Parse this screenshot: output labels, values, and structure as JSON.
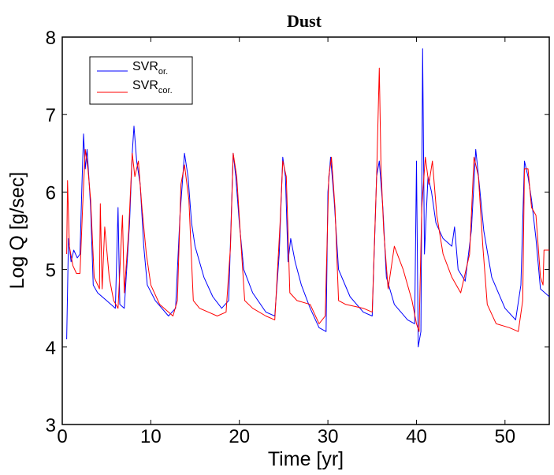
{
  "chart_data": {
    "type": "line",
    "title": "Dust",
    "xlabel": "Time [yr]",
    "ylabel": "Log Q [g/sec]",
    "xlim": [
      0,
      55
    ],
    "ylim": [
      3,
      8
    ],
    "xticks": [
      0,
      10,
      20,
      30,
      40,
      50
    ],
    "yticks": [
      3,
      4,
      5,
      6,
      7,
      8
    ],
    "grid": false,
    "legend_position": "top-left",
    "series": [
      {
        "name": "SVR",
        "name_subscript": "or.",
        "color": "#0000ff",
        "points": [
          [
            0.5,
            4.1
          ],
          [
            0.7,
            5.4
          ],
          [
            1.0,
            5.1
          ],
          [
            1.3,
            5.25
          ],
          [
            1.7,
            5.15
          ],
          [
            2.0,
            5.2
          ],
          [
            2.2,
            6.0
          ],
          [
            2.4,
            6.75
          ],
          [
            2.6,
            6.3
          ],
          [
            2.8,
            6.55
          ],
          [
            3.0,
            6.2
          ],
          [
            3.2,
            5.8
          ],
          [
            3.5,
            4.8
          ],
          [
            4.0,
            4.7
          ],
          [
            5.0,
            4.6
          ],
          [
            6.0,
            4.5
          ],
          [
            6.3,
            5.8
          ],
          [
            6.5,
            4.55
          ],
          [
            7.0,
            4.5
          ],
          [
            7.6,
            5.6
          ],
          [
            7.9,
            6.5
          ],
          [
            8.1,
            6.85
          ],
          [
            8.4,
            6.4
          ],
          [
            8.8,
            6.1
          ],
          [
            9.2,
            5.3
          ],
          [
            9.6,
            4.8
          ],
          [
            10.5,
            4.6
          ],
          [
            12.0,
            4.4
          ],
          [
            12.8,
            4.5
          ],
          [
            13.3,
            5.7
          ],
          [
            13.8,
            6.5
          ],
          [
            14.2,
            6.2
          ],
          [
            14.6,
            5.6
          ],
          [
            15.0,
            5.3
          ],
          [
            16.0,
            4.9
          ],
          [
            17.0,
            4.65
          ],
          [
            18.0,
            4.5
          ],
          [
            18.8,
            4.6
          ],
          [
            19.3,
            6.5
          ],
          [
            19.6,
            6.2
          ],
          [
            20.0,
            5.6
          ],
          [
            20.5,
            5.0
          ],
          [
            21.5,
            4.7
          ],
          [
            23.0,
            4.45
          ],
          [
            24.0,
            4.4
          ],
          [
            24.5,
            5.2
          ],
          [
            24.9,
            6.45
          ],
          [
            25.2,
            6.2
          ],
          [
            25.5,
            5.1
          ],
          [
            25.8,
            5.4
          ],
          [
            26.3,
            5.1
          ],
          [
            27.0,
            4.8
          ],
          [
            28.0,
            4.5
          ],
          [
            29.0,
            4.25
          ],
          [
            29.8,
            4.2
          ],
          [
            30.0,
            6.0
          ],
          [
            30.3,
            6.45
          ],
          [
            30.7,
            5.9
          ],
          [
            31.2,
            5.0
          ],
          [
            32.5,
            4.65
          ],
          [
            34.0,
            4.45
          ],
          [
            35.0,
            4.4
          ],
          [
            35.5,
            6.2
          ],
          [
            35.8,
            6.4
          ],
          [
            36.2,
            5.8
          ],
          [
            36.6,
            4.9
          ],
          [
            37.5,
            4.55
          ],
          [
            39.0,
            4.35
          ],
          [
            39.8,
            4.3
          ],
          [
            40.0,
            6.4
          ],
          [
            40.2,
            4.0
          ],
          [
            40.5,
            4.2
          ],
          [
            40.7,
            7.85
          ],
          [
            40.9,
            5.2
          ],
          [
            41.3,
            6.2
          ],
          [
            41.7,
            6.0
          ],
          [
            42.2,
            5.6
          ],
          [
            43.0,
            5.4
          ],
          [
            44.0,
            5.3
          ],
          [
            44.3,
            5.55
          ],
          [
            44.7,
            5.0
          ],
          [
            45.5,
            4.85
          ],
          [
            46.2,
            5.5
          ],
          [
            46.7,
            6.55
          ],
          [
            47.1,
            6.1
          ],
          [
            47.6,
            5.5
          ],
          [
            48.5,
            4.9
          ],
          [
            50.0,
            4.5
          ],
          [
            51.2,
            4.35
          ],
          [
            51.8,
            4.8
          ],
          [
            52.2,
            6.4
          ],
          [
            52.6,
            6.2
          ],
          [
            53.0,
            5.9
          ],
          [
            53.5,
            5.4
          ],
          [
            54.0,
            4.75
          ],
          [
            55.0,
            4.65
          ]
        ]
      },
      {
        "name": "SVR",
        "name_subscript": "cor.",
        "color": "#ff0000",
        "points": [
          [
            0.5,
            5.2
          ],
          [
            0.6,
            6.15
          ],
          [
            0.8,
            5.3
          ],
          [
            1.2,
            5.05
          ],
          [
            1.6,
            4.95
          ],
          [
            2.0,
            4.95
          ],
          [
            2.3,
            5.8
          ],
          [
            2.6,
            6.55
          ],
          [
            2.9,
            6.3
          ],
          [
            3.2,
            5.9
          ],
          [
            3.6,
            4.9
          ],
          [
            4.2,
            4.75
          ],
          [
            4.3,
            5.85
          ],
          [
            4.5,
            4.75
          ],
          [
            4.8,
            5.55
          ],
          [
            5.3,
            4.9
          ],
          [
            5.8,
            4.6
          ],
          [
            6.3,
            4.5
          ],
          [
            6.8,
            5.7
          ],
          [
            7.0,
            4.7
          ],
          [
            7.5,
            5.5
          ],
          [
            7.9,
            6.5
          ],
          [
            8.2,
            6.2
          ],
          [
            8.6,
            6.4
          ],
          [
            9.0,
            5.8
          ],
          [
            9.5,
            5.2
          ],
          [
            10.0,
            4.8
          ],
          [
            11.0,
            4.55
          ],
          [
            12.5,
            4.4
          ],
          [
            13.0,
            4.6
          ],
          [
            13.4,
            6.1
          ],
          [
            13.8,
            6.35
          ],
          [
            14.3,
            5.9
          ],
          [
            14.8,
            4.6
          ],
          [
            15.5,
            4.5
          ],
          [
            16.5,
            4.45
          ],
          [
            17.5,
            4.4
          ],
          [
            18.5,
            4.45
          ],
          [
            19.0,
            5.3
          ],
          [
            19.3,
            6.5
          ],
          [
            19.7,
            6.2
          ],
          [
            20.2,
            5.3
          ],
          [
            20.6,
            4.6
          ],
          [
            21.5,
            4.5
          ],
          [
            23.0,
            4.4
          ],
          [
            24.0,
            4.35
          ],
          [
            24.6,
            5.6
          ],
          [
            24.9,
            6.4
          ],
          [
            25.3,
            6.2
          ],
          [
            25.7,
            4.7
          ],
          [
            26.5,
            4.6
          ],
          [
            28.0,
            4.55
          ],
          [
            29.0,
            4.3
          ],
          [
            29.7,
            4.4
          ],
          [
            30.1,
            6.2
          ],
          [
            30.4,
            6.45
          ],
          [
            30.8,
            5.8
          ],
          [
            31.2,
            4.6
          ],
          [
            32.0,
            4.55
          ],
          [
            34.0,
            4.5
          ],
          [
            35.0,
            4.45
          ],
          [
            35.5,
            6.2
          ],
          [
            35.8,
            7.6
          ],
          [
            36.0,
            6.3
          ],
          [
            36.3,
            5.5
          ],
          [
            36.8,
            4.75
          ],
          [
            37.5,
            5.3
          ],
          [
            38.5,
            5.0
          ],
          [
            39.5,
            4.6
          ],
          [
            40.0,
            4.3
          ],
          [
            40.3,
            4.2
          ],
          [
            40.6,
            5.8
          ],
          [
            41.0,
            6.45
          ],
          [
            41.4,
            6.1
          ],
          [
            41.8,
            6.4
          ],
          [
            42.3,
            5.7
          ],
          [
            43.0,
            5.2
          ],
          [
            44.0,
            4.9
          ],
          [
            45.0,
            4.7
          ],
          [
            46.0,
            5.2
          ],
          [
            46.5,
            6.45
          ],
          [
            47.0,
            6.2
          ],
          [
            47.5,
            5.3
          ],
          [
            48.0,
            4.55
          ],
          [
            49.0,
            4.3
          ],
          [
            50.5,
            4.25
          ],
          [
            51.5,
            4.2
          ],
          [
            52.0,
            4.6
          ],
          [
            52.2,
            6.3
          ],
          [
            52.6,
            6.3
          ],
          [
            53.0,
            5.8
          ],
          [
            53.5,
            5.7
          ],
          [
            54.0,
            4.9
          ],
          [
            54.3,
            4.8
          ],
          [
            54.4,
            5.25
          ],
          [
            55.0,
            5.25
          ]
        ]
      }
    ]
  }
}
